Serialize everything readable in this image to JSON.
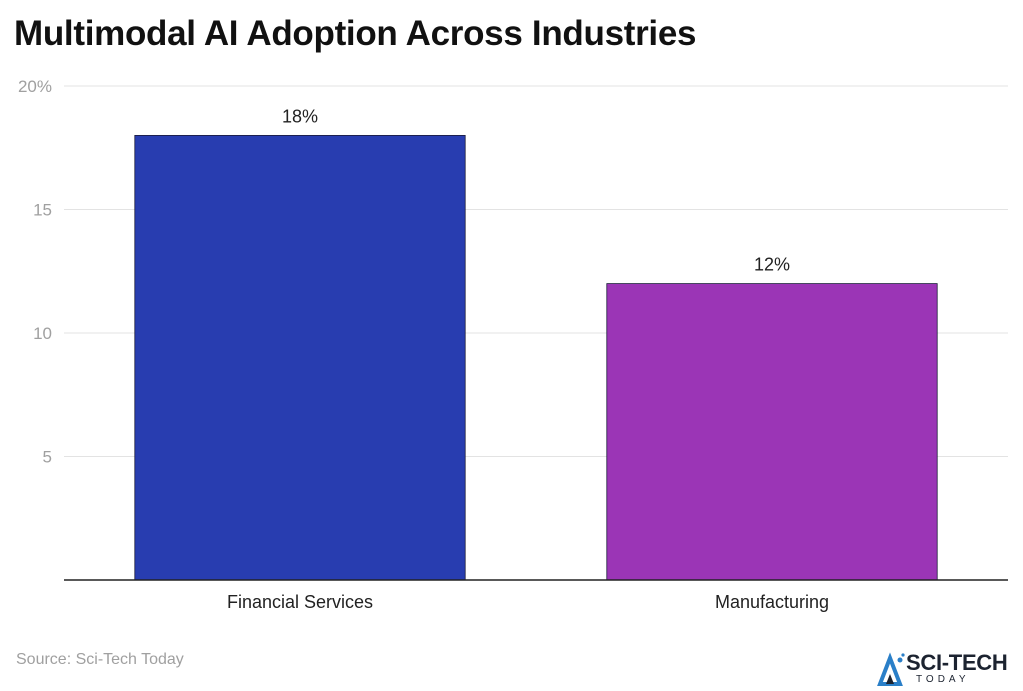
{
  "title": "Multimodal AI Adoption Across Industries",
  "source": "Source: Sci-Tech Today",
  "logo": {
    "main": "SCI-TECH",
    "sub": "TODAY"
  },
  "chart_data": {
    "type": "bar",
    "title": "Multimodal AI Adoption Across Industries",
    "categories": [
      "Financial Services",
      "Manufacturing"
    ],
    "values": [
      18,
      12
    ],
    "data_labels": [
      "18%",
      "12%"
    ],
    "colors": [
      "#283db0",
      "#9b35b6"
    ],
    "ylim": [
      0,
      20
    ],
    "y_ticks": [
      5,
      10,
      15,
      20
    ],
    "y_tick_labels": [
      "5",
      "10",
      "15",
      "20%"
    ],
    "xlabel": "",
    "ylabel": "",
    "grid": true
  }
}
